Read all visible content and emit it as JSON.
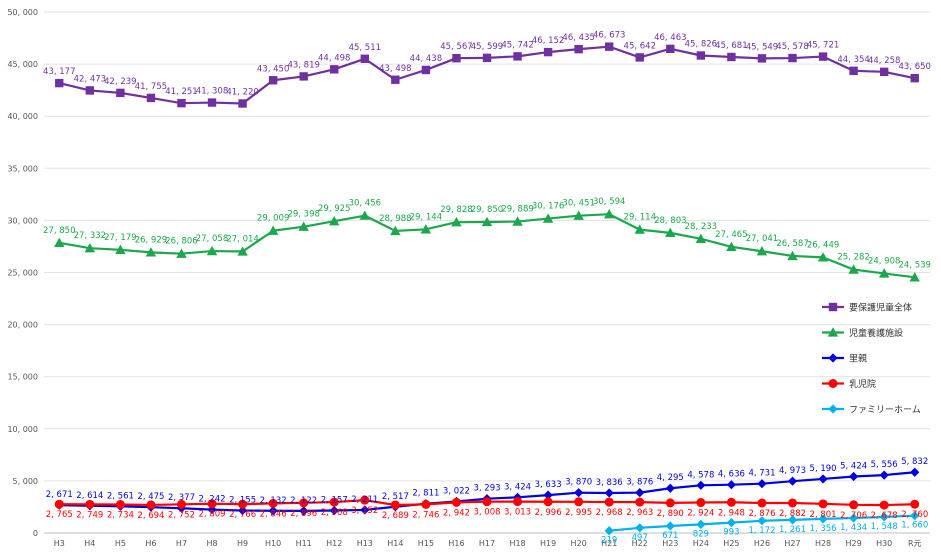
{
  "chart_data": {
    "type": "line",
    "categories": [
      "H3",
      "H4",
      "H5",
      "H6",
      "H7",
      "H8",
      "H9",
      "H10",
      "H11",
      "H12",
      "H13",
      "H14",
      "H15",
      "H16",
      "H17",
      "H18",
      "H19",
      "H20",
      "H21",
      "H22",
      "H23",
      "H24",
      "H25",
      "H26",
      "H27",
      "H28",
      "H29",
      "H30",
      "R元"
    ],
    "ylim": [
      0,
      50000
    ],
    "yticks": [
      0,
      5000,
      10000,
      15000,
      20000,
      25000,
      30000,
      35000,
      40000,
      45000,
      50000
    ],
    "ytick_labels": [
      "0",
      "5, 000",
      "10, 000",
      "15, 000",
      "20, 000",
      "25, 000",
      "30, 000",
      "35, 000",
      "40, 000",
      "45, 000",
      "50, 000"
    ],
    "grid": "horizontal",
    "legend_position": "right",
    "series": [
      {
        "name": "要保護児童全体",
        "color": "#7030a0",
        "marker": "square",
        "values": [
          43177,
          42473,
          42239,
          41755,
          41251,
          41308,
          41220,
          43450,
          43819,
          44498,
          45511,
          43498,
          44438,
          45567,
          45599,
          45742,
          46152,
          46435,
          46673,
          45642,
          46463,
          45826,
          45681,
          45549,
          45578,
          45721,
          44354,
          44258,
          43650
        ],
        "labels": [
          "43, 177",
          "42, 473",
          "42, 239",
          "41, 755",
          "41, 251",
          "41, 308",
          "41, 220",
          "43, 450",
          "43, 819",
          "44, 498",
          "45, 511",
          "43, 498",
          "44, 438",
          "45, 567",
          "45, 599",
          "45, 742",
          "46, 152",
          "46, 435",
          "46, 673",
          "45, 642",
          "46, 463",
          "45, 826",
          "45, 681",
          "45, 549",
          "45, 578",
          "45, 721",
          "44, 354",
          "44, 258",
          "43, 650"
        ]
      },
      {
        "name": "児童養護施設",
        "color": "#1aa84b",
        "marker": "triangle",
        "values": [
          27850,
          27332,
          27179,
          26929,
          26806,
          27058,
          27014,
          29009,
          29398,
          29925,
          30456,
          28988,
          29144,
          29828,
          29850,
          29889,
          30176,
          30451,
          30594,
          29114,
          28803,
          28233,
          27465,
          27041,
          26587,
          26449,
          25282,
          24908,
          24539
        ],
        "labels": [
          "27, 850",
          "27, 332",
          "27, 179",
          "26, 929",
          "26, 806",
          "27, 058",
          "27, 014",
          "29, 009",
          "29, 398",
          "29, 925",
          "30, 456",
          "28, 988",
          "29, 144",
          "29, 828",
          "29, 850",
          "29, 889",
          "30, 176",
          "30, 451",
          "30, 594",
          "29, 114",
          "28, 803",
          "28, 233",
          "27, 465",
          "27, 041",
          "26, 587",
          "26, 449",
          "25, 282",
          "24, 908",
          "24, 539"
        ]
      },
      {
        "name": "里親",
        "color": "#0000e0",
        "marker": "diamond",
        "values": [
          2671,
          2614,
          2561,
          2475,
          2377,
          2242,
          2155,
          2132,
          2122,
          2157,
          2211,
          2517,
          2811,
          3022,
          3293,
          3424,
          3633,
          3870,
          3836,
          3876,
          4295,
          4578,
          4636,
          4731,
          4973,
          5190,
          5424,
          5556,
          5832
        ],
        "labels": [
          "2, 671",
          "2, 614",
          "2, 561",
          "2, 475",
          "2, 377",
          "2, 242",
          "2, 155",
          "2, 132",
          "2, 122",
          "2, 157",
          "2, 211",
          "2, 517",
          "2, 811",
          "3, 022",
          "3, 293",
          "3, 424",
          "3, 633",
          "3, 870",
          "3, 836",
          "3, 876",
          "4, 295",
          "4, 578",
          "4, 636",
          "4, 731",
          "4, 973",
          "5, 190",
          "5, 424",
          "5, 556",
          "5, 832"
        ]
      },
      {
        "name": "乳児院",
        "color": "#ff0000",
        "marker": "circle",
        "values": [
          2765,
          2749,
          2734,
          2694,
          2752,
          2809,
          2766,
          2846,
          2896,
          2968,
          3152,
          2689,
          2746,
          2942,
          3008,
          3013,
          2996,
          2995,
          2968,
          2963,
          2890,
          2924,
          2948,
          2876,
          2882,
          2801,
          2706,
          2678,
          2760
        ],
        "labels": [
          "2, 765",
          "2, 749",
          "2, 734",
          "2, 694",
          "2, 752",
          "2, 809",
          "2, 766",
          "2, 846",
          "2, 896",
          "2, 968",
          "3, 152",
          "2, 689",
          "2, 746",
          "2, 942",
          "3, 008",
          "3, 013",
          "2, 996",
          "2, 995",
          "2, 968",
          "2, 963",
          "2, 890",
          "2, 924",
          "2, 948",
          "2, 876",
          "2, 882",
          "2, 801",
          "2, 706",
          "2, 678",
          "2, 760"
        ]
      },
      {
        "name": "ファミリーホーム",
        "color": "#00b0f0",
        "marker": "diamond",
        "values": [
          null,
          null,
          null,
          null,
          null,
          null,
          null,
          null,
          null,
          null,
          null,
          null,
          null,
          null,
          null,
          null,
          null,
          null,
          219,
          497,
          671,
          829,
          993,
          1172,
          1261,
          1356,
          1434,
          1548,
          1660
        ],
        "labels": [
          null,
          null,
          null,
          null,
          null,
          null,
          null,
          null,
          null,
          null,
          null,
          null,
          null,
          null,
          null,
          null,
          null,
          null,
          "219",
          "497",
          "671",
          "829",
          "993",
          "1, 172",
          "1, 261",
          "1, 356",
          "1, 434",
          "1, 548",
          "1, 660"
        ]
      }
    ]
  }
}
